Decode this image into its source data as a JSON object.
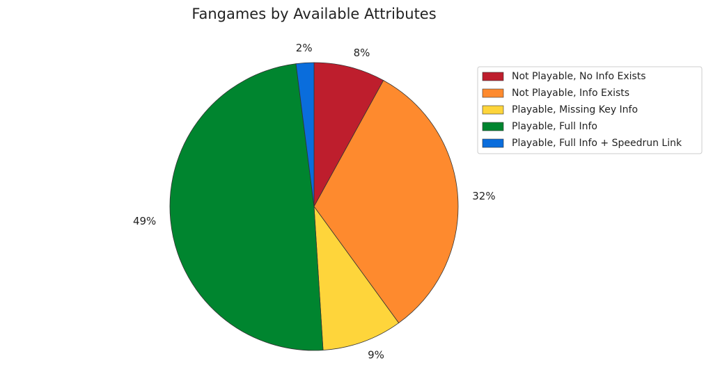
{
  "chart_data": {
    "type": "pie",
    "title": "Fangames by Available Attributes",
    "categories": [
      "Not Playable, No Info Exists",
      "Not Playable, Info Exists",
      "Playable, Missing Key Info",
      "Playable, Full Info",
      "Playable, Full Info + Speedrun Link"
    ],
    "values": [
      8,
      32,
      9,
      49,
      2
    ],
    "value_labels": [
      "8%",
      "32%",
      "9%",
      "49%",
      "2%"
    ],
    "colors": [
      "#be1e2d",
      "#fe8a2e",
      "#fed53b",
      "#00852f",
      "#0a6ddc"
    ]
  }
}
